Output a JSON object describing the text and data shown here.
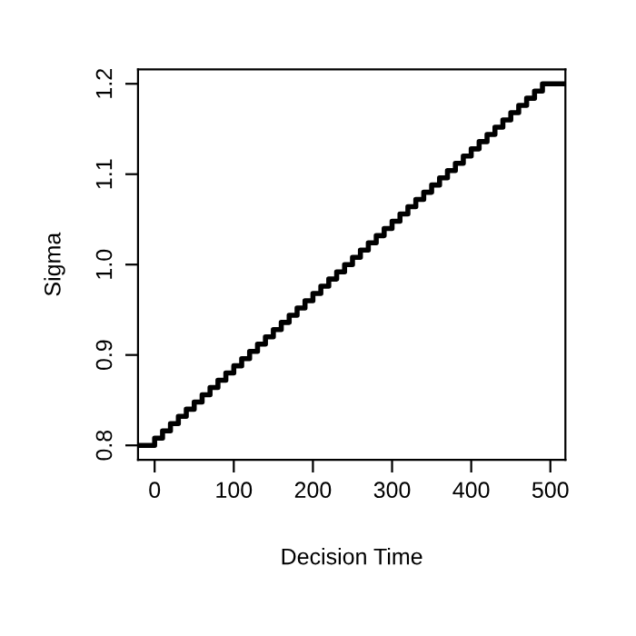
{
  "chart_data": {
    "type": "step",
    "xlabel": "Decision Time",
    "ylabel": "Sigma",
    "x": [
      -21,
      0,
      10,
      20,
      30,
      40,
      50,
      60,
      70,
      80,
      90,
      100,
      110,
      120,
      130,
      140,
      150,
      160,
      170,
      180,
      190,
      200,
      210,
      220,
      230,
      240,
      250,
      260,
      270,
      280,
      290,
      300,
      310,
      320,
      330,
      340,
      350,
      360,
      370,
      380,
      390,
      400,
      410,
      420,
      430,
      440,
      450,
      460,
      470,
      480,
      490,
      519
    ],
    "values": [
      0.8,
      0.808,
      0.816,
      0.824,
      0.832,
      0.84,
      0.848,
      0.856,
      0.864,
      0.872,
      0.88,
      0.888,
      0.896,
      0.904,
      0.912,
      0.92,
      0.928,
      0.936,
      0.944,
      0.952,
      0.96,
      0.968,
      0.976,
      0.984,
      0.992,
      1.0,
      1.008,
      1.016,
      1.024,
      1.032,
      1.04,
      1.048,
      1.056,
      1.064,
      1.072,
      1.08,
      1.088,
      1.096,
      1.104,
      1.112,
      1.12,
      1.128,
      1.136,
      1.144,
      1.152,
      1.16,
      1.168,
      1.176,
      1.184,
      1.192,
      1.2,
      1.2
    ],
    "color": "#000000",
    "xlim": [
      -21,
      519
    ],
    "ylim": [
      0.784,
      1.216
    ],
    "xticks": [
      0,
      100,
      200,
      300,
      400,
      500
    ],
    "yticks": [
      {
        "value": 0.8,
        "label": "0.8"
      },
      {
        "value": 0.9,
        "label": "0.9"
      },
      {
        "value": 1.0,
        "label": "1.0"
      },
      {
        "value": 1.1,
        "label": "1.1"
      },
      {
        "value": 1.2,
        "label": "1.2"
      }
    ],
    "grid": false,
    "legend": false
  }
}
